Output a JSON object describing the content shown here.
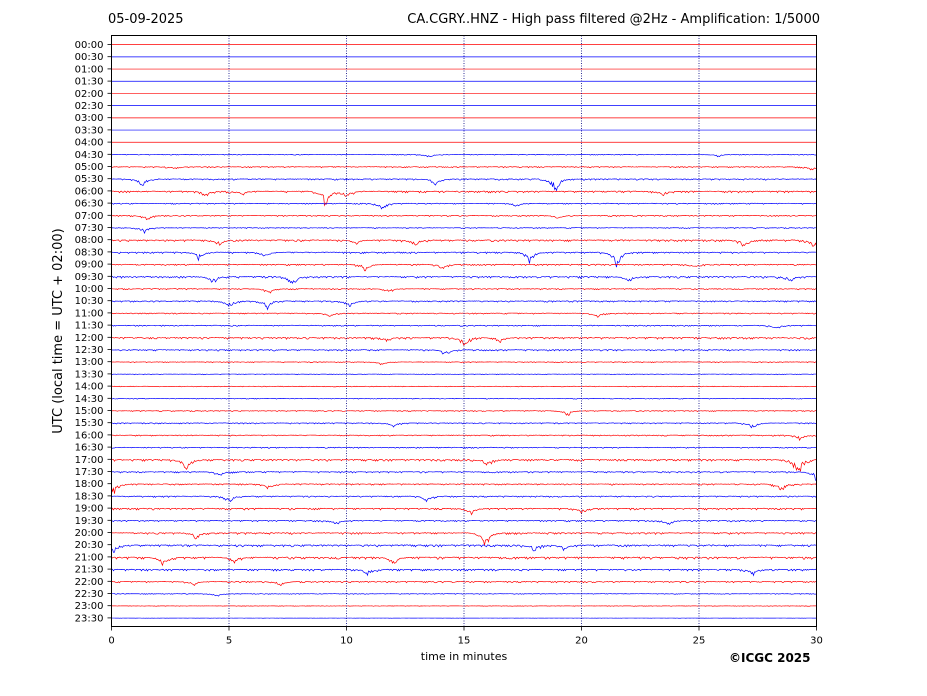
{
  "header": {
    "date": "05-09-2025",
    "title": "CA.CGRY..HNZ - High pass filtered @2Hz - Amplification: 1/5000"
  },
  "footer": {
    "copyright": "©ICGC 2025"
  },
  "colors": {
    "odd_trace": "#ff0000",
    "even_trace": "#0000ff",
    "grid": "#000080"
  },
  "chart_data": {
    "type": "line",
    "title": "CA.CGRY..HNZ - High pass filtered @2Hz - Amplification: 1/5000",
    "xlabel": "time in minutes",
    "ylabel": "UTC (local time = UTC + 02:00)",
    "xlim": [
      0,
      30
    ],
    "xticks": [
      "0",
      "5",
      "10",
      "15",
      "20",
      "25",
      "30"
    ],
    "x_gridlines": [
      5,
      10,
      15,
      20,
      25
    ],
    "row_labels": [
      "00:00",
      "00:30",
      "01:00",
      "01:30",
      "02:00",
      "02:30",
      "03:00",
      "03:30",
      "04:00",
      "04:30",
      "05:00",
      "05:30",
      "06:00",
      "06:30",
      "07:00",
      "07:30",
      "08:00",
      "08:30",
      "09:00",
      "09:30",
      "10:00",
      "10:30",
      "11:00",
      "11:30",
      "12:00",
      "12:30",
      "13:00",
      "13:30",
      "14:00",
      "14:30",
      "15:00",
      "15:30",
      "16:00",
      "16:30",
      "17:00",
      "17:30",
      "18:00",
      "18:30",
      "19:00",
      "19:30",
      "20:00",
      "20:30",
      "21:00",
      "21:30",
      "22:00",
      "22:30",
      "23:00",
      "23:30"
    ],
    "activity": [
      0,
      0,
      0,
      0,
      0,
      0,
      0,
      0,
      0,
      0.3,
      0.5,
      0.6,
      0.8,
      0.5,
      0.5,
      0.4,
      0.8,
      0.7,
      0.6,
      0.8,
      0.5,
      0.6,
      0.5,
      0.5,
      0.8,
      0.6,
      0.4,
      0.3,
      0.3,
      0.3,
      0.4,
      0.5,
      0.5,
      0.5,
      0.8,
      0.6,
      0.6,
      0.6,
      0.8,
      0.6,
      0.8,
      0.9,
      1.0,
      0.8,
      0.6,
      0.3,
      0.2,
      0.1
    ],
    "events": [
      {
        "row": 9,
        "x": 13.5,
        "amp": 0.3
      },
      {
        "row": 9,
        "x": 25.8,
        "amp": 0.2
      },
      {
        "row": 10,
        "x": 2.7,
        "amp": 0.3
      },
      {
        "row": 10,
        "x": 29.8,
        "amp": 0.3
      },
      {
        "row": 11,
        "x": 1.3,
        "amp": 0.8
      },
      {
        "row": 11,
        "x": 13.8,
        "amp": 0.6
      },
      {
        "row": 11,
        "x": 18.9,
        "amp": 1.2
      },
      {
        "row": 12,
        "x": 4.0,
        "amp": 0.6
      },
      {
        "row": 12,
        "x": 5.5,
        "amp": 0.4
      },
      {
        "row": 12,
        "x": 9.1,
        "amp": 1.4
      },
      {
        "row": 12,
        "x": 10.0,
        "amp": 0.6
      },
      {
        "row": 12,
        "x": 23.5,
        "amp": 0.4
      },
      {
        "row": 13,
        "x": 11.5,
        "amp": 0.6
      },
      {
        "row": 13,
        "x": 17.2,
        "amp": 0.3
      },
      {
        "row": 14,
        "x": 1.5,
        "amp": 0.4
      },
      {
        "row": 14,
        "x": 19.0,
        "amp": 0.3
      },
      {
        "row": 15,
        "x": 1.4,
        "amp": 0.5
      },
      {
        "row": 16,
        "x": 4.6,
        "amp": 0.5
      },
      {
        "row": 16,
        "x": 10.4,
        "amp": 0.4
      },
      {
        "row": 16,
        "x": 12.9,
        "amp": 0.6
      },
      {
        "row": 16,
        "x": 26.9,
        "amp": 0.7
      },
      {
        "row": 16,
        "x": 29.9,
        "amp": 0.9
      },
      {
        "row": 17,
        "x": 3.7,
        "amp": 0.7
      },
      {
        "row": 17,
        "x": 6.5,
        "amp": 0.5
      },
      {
        "row": 17,
        "x": 17.8,
        "amp": 1.0
      },
      {
        "row": 17,
        "x": 21.5,
        "amp": 1.6
      },
      {
        "row": 18,
        "x": 10.8,
        "amp": 0.6
      },
      {
        "row": 18,
        "x": 14.1,
        "amp": 0.4
      },
      {
        "row": 18,
        "x": 24.8,
        "amp": 0.4
      },
      {
        "row": 19,
        "x": 4.3,
        "amp": 0.6
      },
      {
        "row": 19,
        "x": 7.7,
        "amp": 0.8
      },
      {
        "row": 19,
        "x": 22.0,
        "amp": 0.6
      },
      {
        "row": 19,
        "x": 28.9,
        "amp": 0.5
      },
      {
        "row": 20,
        "x": 6.7,
        "amp": 0.5
      },
      {
        "row": 20,
        "x": 11.8,
        "amp": 0.3
      },
      {
        "row": 21,
        "x": 5.0,
        "amp": 0.6
      },
      {
        "row": 21,
        "x": 6.6,
        "amp": 0.8
      },
      {
        "row": 21,
        "x": 10.1,
        "amp": 0.6
      },
      {
        "row": 22,
        "x": 9.3,
        "amp": 0.3
      },
      {
        "row": 22,
        "x": 20.7,
        "amp": 0.4
      },
      {
        "row": 23,
        "x": 28.3,
        "amp": 0.4
      },
      {
        "row": 24,
        "x": 11.7,
        "amp": 0.4
      },
      {
        "row": 24,
        "x": 15.0,
        "amp": 0.9
      },
      {
        "row": 24,
        "x": 16.5,
        "amp": 0.5
      },
      {
        "row": 25,
        "x": 14.2,
        "amp": 0.5
      },
      {
        "row": 26,
        "x": 11.5,
        "amp": 0.3
      },
      {
        "row": 30,
        "x": 19.4,
        "amp": 0.5
      },
      {
        "row": 31,
        "x": 12.0,
        "amp": 0.4
      },
      {
        "row": 31,
        "x": 27.3,
        "amp": 0.6
      },
      {
        "row": 32,
        "x": 29.3,
        "amp": 0.5
      },
      {
        "row": 34,
        "x": 3.2,
        "amp": 1.2
      },
      {
        "row": 34,
        "x": 16.0,
        "amp": 0.6
      },
      {
        "row": 34,
        "x": 29.2,
        "amp": 1.6
      },
      {
        "row": 35,
        "x": 4.6,
        "amp": 0.4
      },
      {
        "row": 35,
        "x": 30.0,
        "amp": 0.8
      },
      {
        "row": 36,
        "x": 0.1,
        "amp": 1.0
      },
      {
        "row": 36,
        "x": 6.7,
        "amp": 0.5
      },
      {
        "row": 36,
        "x": 28.5,
        "amp": 0.8
      },
      {
        "row": 37,
        "x": 5.0,
        "amp": 0.6
      },
      {
        "row": 37,
        "x": 13.4,
        "amp": 0.5
      },
      {
        "row": 38,
        "x": 15.3,
        "amp": 0.6
      },
      {
        "row": 38,
        "x": 20.0,
        "amp": 0.5
      },
      {
        "row": 39,
        "x": 9.6,
        "amp": 0.4
      },
      {
        "row": 39,
        "x": 23.7,
        "amp": 0.4
      },
      {
        "row": 40,
        "x": 3.6,
        "amp": 0.6
      },
      {
        "row": 40,
        "x": 15.9,
        "amp": 1.3
      },
      {
        "row": 41,
        "x": 0.1,
        "amp": 0.8
      },
      {
        "row": 41,
        "x": 18.0,
        "amp": 0.6
      },
      {
        "row": 41,
        "x": 19.3,
        "amp": 0.6
      },
      {
        "row": 42,
        "x": 2.2,
        "amp": 0.8
      },
      {
        "row": 42,
        "x": 5.2,
        "amp": 0.6
      },
      {
        "row": 42,
        "x": 12.0,
        "amp": 0.7
      },
      {
        "row": 43,
        "x": 10.9,
        "amp": 0.5
      },
      {
        "row": 43,
        "x": 27.3,
        "amp": 0.5
      },
      {
        "row": 44,
        "x": 3.5,
        "amp": 0.4
      },
      {
        "row": 44,
        "x": 7.2,
        "amp": 0.4
      },
      {
        "row": 45,
        "x": 4.5,
        "amp": 0.3
      }
    ]
  }
}
